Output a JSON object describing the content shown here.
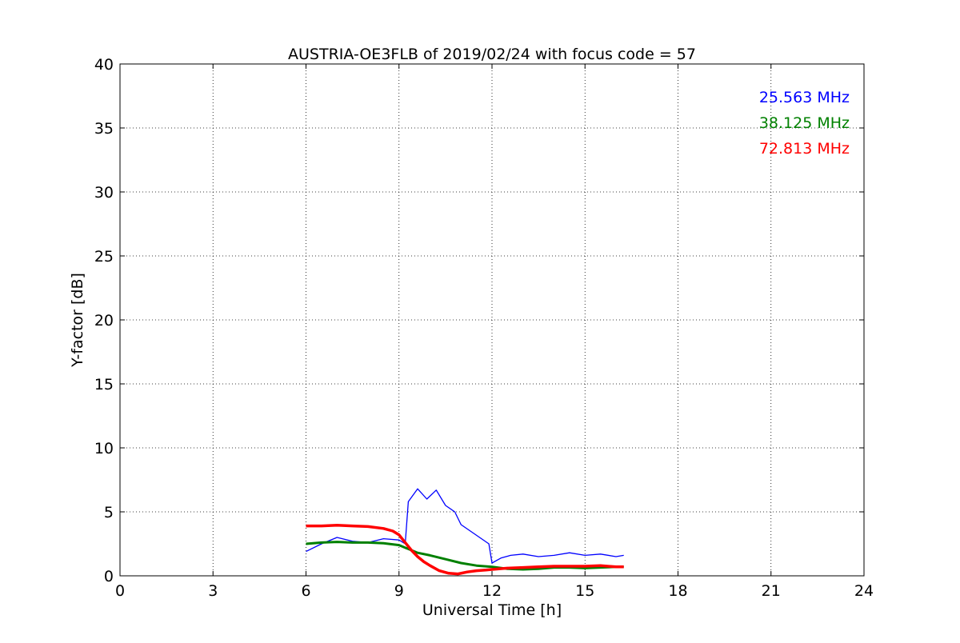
{
  "chart_data": {
    "type": "line",
    "title": "AUSTRIA-OE3FLB of 2019/02/24 with focus code = 57",
    "xlabel": "Universal Time [h]",
    "ylabel": "Y-factor [dB]",
    "xlim": [
      0,
      24
    ],
    "ylim": [
      0,
      40
    ],
    "xticks": [
      0,
      3,
      6,
      9,
      12,
      15,
      18,
      21,
      24
    ],
    "yticks": [
      0,
      5,
      10,
      15,
      20,
      25,
      30,
      35,
      40
    ],
    "grid": true,
    "legend_placement": "top-right",
    "series": [
      {
        "name": "25.563 MHz",
        "color": "#0000ff",
        "x": [
          6.0,
          6.5,
          7.0,
          7.5,
          8.0,
          8.5,
          9.0,
          9.2,
          9.3,
          9.6,
          9.9,
          10.2,
          10.5,
          10.8,
          11.0,
          11.3,
          11.6,
          11.9,
          12.0,
          12.3,
          12.6,
          13.0,
          13.5,
          14.0,
          14.5,
          15.0,
          15.5,
          16.0,
          16.25
        ],
        "values": [
          1.9,
          2.5,
          3.0,
          2.7,
          2.6,
          2.9,
          2.8,
          2.5,
          5.8,
          6.8,
          6.0,
          6.7,
          5.5,
          5.0,
          4.0,
          3.5,
          3.0,
          2.5,
          1.0,
          1.4,
          1.6,
          1.7,
          1.5,
          1.6,
          1.8,
          1.6,
          1.7,
          1.5,
          1.6
        ]
      },
      {
        "name": "38.125 MHz",
        "color": "#008000",
        "x": [
          6.0,
          6.5,
          7.0,
          7.5,
          8.0,
          8.5,
          9.0,
          9.3,
          9.6,
          10.0,
          10.5,
          11.0,
          11.5,
          12.0,
          12.5,
          13.0,
          13.5,
          14.0,
          14.5,
          15.0,
          15.5,
          16.0,
          16.25
        ],
        "values": [
          2.5,
          2.6,
          2.65,
          2.6,
          2.6,
          2.55,
          2.4,
          2.1,
          1.8,
          1.6,
          1.3,
          1.0,
          0.8,
          0.7,
          0.55,
          0.5,
          0.55,
          0.65,
          0.65,
          0.6,
          0.65,
          0.7,
          0.7
        ]
      },
      {
        "name": "72.813 MHz",
        "color": "#ff0000",
        "x": [
          6.0,
          6.5,
          7.0,
          7.5,
          8.0,
          8.5,
          8.8,
          9.0,
          9.2,
          9.4,
          9.6,
          9.8,
          10.0,
          10.3,
          10.6,
          10.9,
          11.2,
          11.5,
          11.8,
          12.0,
          12.5,
          13.0,
          13.5,
          14.0,
          14.5,
          15.0,
          15.5,
          16.0,
          16.25
        ],
        "values": [
          3.9,
          3.9,
          3.95,
          3.9,
          3.85,
          3.7,
          3.5,
          3.2,
          2.6,
          2.0,
          1.5,
          1.1,
          0.8,
          0.4,
          0.2,
          0.15,
          0.3,
          0.4,
          0.45,
          0.5,
          0.6,
          0.65,
          0.7,
          0.75,
          0.75,
          0.75,
          0.8,
          0.7,
          0.7
        ]
      }
    ]
  }
}
